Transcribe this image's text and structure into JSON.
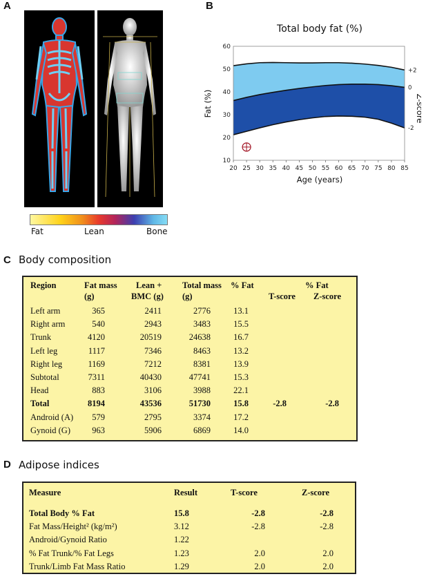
{
  "panel_labels": {
    "a": "A",
    "b": "B",
    "c": "C",
    "d": "D"
  },
  "colorbar": {
    "labels": [
      "Fat",
      "Lean",
      "Bone"
    ]
  },
  "chart_data": {
    "type": "area",
    "title": "Total body fat (%)",
    "xlabel": "Age (years)",
    "ylabel": "Fat (%)",
    "y2label": "Z-score",
    "xlim": [
      20,
      85
    ],
    "ylim": [
      10,
      60
    ],
    "x_ticks": [
      20,
      25,
      30,
      35,
      40,
      45,
      50,
      55,
      60,
      65,
      70,
      75,
      80,
      85
    ],
    "y_ticks": [
      10,
      20,
      30,
      40,
      50,
      60
    ],
    "zscore_labels": [
      "+2",
      "0",
      "-2"
    ],
    "x": [
      20,
      25,
      30,
      35,
      40,
      45,
      50,
      55,
      60,
      65,
      70,
      75,
      80,
      85
    ],
    "series": [
      {
        "name": "+2",
        "values": [
          51.5,
          52.3,
          52.8,
          52.9,
          52.8,
          52.7,
          52.7,
          52.8,
          52.8,
          52.6,
          52.2,
          51.6,
          50.8,
          49.6
        ]
      },
      {
        "name": "0",
        "values": [
          36.2,
          37.6,
          38.8,
          39.8,
          40.7,
          41.5,
          42.2,
          42.8,
          43.2,
          43.4,
          43.4,
          43.2,
          42.7,
          42.0
        ]
      },
      {
        "name": "-2",
        "values": [
          21.2,
          22.7,
          24.2,
          25.6,
          26.8,
          27.8,
          28.6,
          29.2,
          29.4,
          29.3,
          28.9,
          28.0,
          26.3,
          24.2
        ]
      }
    ],
    "marker": {
      "x": 25,
      "y": 15.8
    },
    "colors": {
      "upper_band": "#7ecbf0",
      "lower_band": "#1e4fa8",
      "line": "#111111",
      "marker": "#a01020"
    }
  },
  "body_composition": {
    "title": "Body composition",
    "headers": {
      "region": "Region",
      "fat_mass_1": "Fat mass",
      "fat_mass_2": "(g)",
      "lean_1": "Lean +",
      "lean_2": "BMC (g)",
      "total_1": "Total mass",
      "total_2": "(g)",
      "pct_fat": "% Fat",
      "group": "% Fat",
      "tscore": "T-score",
      "zscore": "Z-score"
    },
    "rows": [
      {
        "region": "Left arm",
        "fat": "365",
        "lean": "2411",
        "total": "2776",
        "pct": "13.1",
        "t": "",
        "z": ""
      },
      {
        "region": "Right arm",
        "fat": "540",
        "lean": "2943",
        "total": "3483",
        "pct": "15.5",
        "t": "",
        "z": ""
      },
      {
        "region": "Trunk",
        "fat": "4120",
        "lean": "20519",
        "total": "24638",
        "pct": "16.7",
        "t": "",
        "z": ""
      },
      {
        "region": "Left leg",
        "fat": "1117",
        "lean": "7346",
        "total": "8463",
        "pct": "13.2",
        "t": "",
        "z": ""
      },
      {
        "region": "Right leg",
        "fat": "1169",
        "lean": "7212",
        "total": "8381",
        "pct": "13.9",
        "t": "",
        "z": ""
      },
      {
        "region": "Subtotal",
        "fat": "7311",
        "lean": "40430",
        "total": "47741",
        "pct": "15.3",
        "t": "",
        "z": ""
      },
      {
        "region": "Head",
        "fat": "883",
        "lean": "3106",
        "total": "3988",
        "pct": "22.1",
        "t": "",
        "z": ""
      },
      {
        "region": "Total",
        "fat": "8194",
        "lean": "43536",
        "total": "51730",
        "pct": "15.8",
        "t": "-2.8",
        "z": "-2.8",
        "bold": true
      },
      {
        "region": "Android (A)",
        "fat": "579",
        "lean": "2795",
        "total": "3374",
        "pct": "17.2",
        "t": "",
        "z": ""
      },
      {
        "region": "Gynoid (G)",
        "fat": "963",
        "lean": "5906",
        "total": "6869",
        "pct": "14.0",
        "t": "",
        "z": ""
      }
    ]
  },
  "adipose_indices": {
    "title": "Adipose indices",
    "headers": {
      "measure": "Measure",
      "result": "Result",
      "tscore": "T-score",
      "zscore": "Z-score"
    },
    "rows": [
      {
        "measure": "Total Body % Fat",
        "result": "15.8",
        "t": "-2.8",
        "z": "-2.8",
        "bold": true
      },
      {
        "measure": "Fat Mass/Height² (kg/m²)",
        "result": "3.12",
        "t": "-2.8",
        "z": "-2.8"
      },
      {
        "measure": "Android/Gynoid Ratio",
        "result": "1.22",
        "t": "",
        "z": ""
      },
      {
        "measure": "% Fat Trunk/% Fat Legs",
        "result": "1.23",
        "t": "2.0",
        "z": "2.0"
      },
      {
        "measure": "Trunk/Limb Fat Mass Ratio",
        "result": "1.29",
        "t": "2.0",
        "z": "2.0"
      }
    ]
  }
}
